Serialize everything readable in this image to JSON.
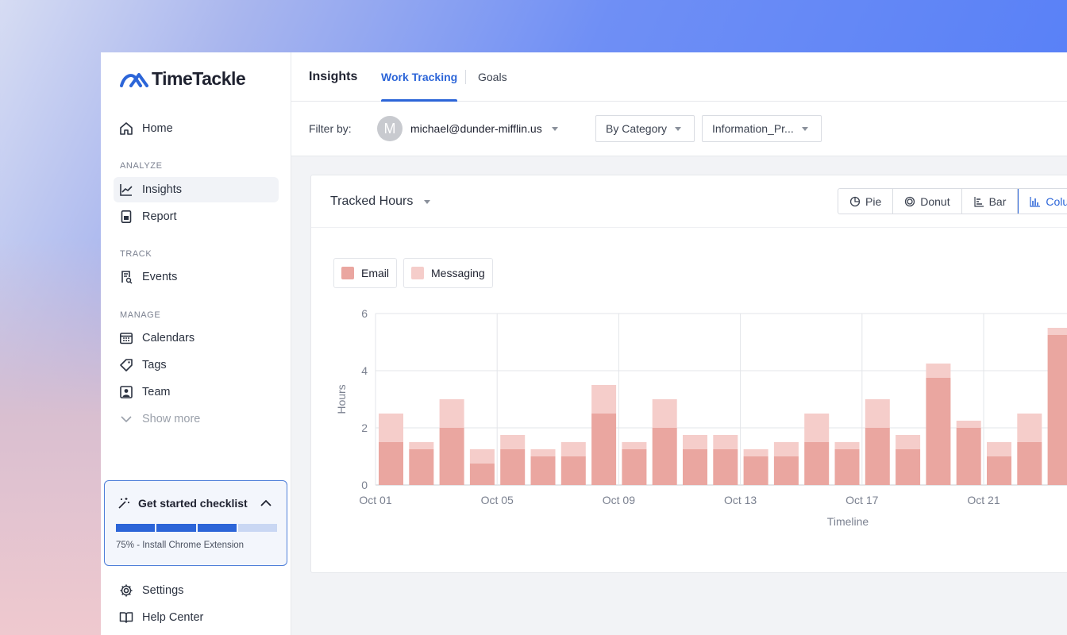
{
  "app": {
    "name": "TimeTackle"
  },
  "sidebar": {
    "home": "Home",
    "sections": {
      "analyze": "ANALYZE",
      "track": "TRACK",
      "manage": "MANAGE"
    },
    "items": {
      "insights": "Insights",
      "report": "Report",
      "events": "Events",
      "calendars": "Calendars",
      "tags": "Tags",
      "team": "Team",
      "show_more": "Show more",
      "settings": "Settings",
      "help_center": "Help Center"
    },
    "checklist": {
      "title": "Get started checklist",
      "progress_fraction": 0.75,
      "status": "75% - Install Chrome Extension"
    }
  },
  "header": {
    "title": "Insights",
    "tabs": [
      {
        "label": "Work Tracking",
        "active": true
      },
      {
        "label": "Goals",
        "active": false
      }
    ]
  },
  "filters": {
    "label": "Filter by:",
    "avatar_initial": "M",
    "user": "michael@dunder-mifflin.us",
    "group_by": "By Category",
    "category": "Information_Pr..."
  },
  "card": {
    "metric": "Tracked Hours",
    "chart_types": [
      {
        "label": "Pie",
        "icon": "pie-icon"
      },
      {
        "label": "Donut",
        "icon": "donut-icon"
      },
      {
        "label": "Bar",
        "icon": "bar-icon"
      },
      {
        "label": "Colu",
        "icon": "column-icon",
        "active": true
      }
    ]
  },
  "colors": {
    "email": "#eaa6a0",
    "messaging": "#f5cdca",
    "accent": "#2c65d8"
  },
  "chart_data": {
    "type": "bar",
    "stacked": true,
    "xlabel": "Timeline",
    "ylabel": "Hours",
    "ylim": [
      0,
      6
    ],
    "yticks": [
      0,
      2,
      4,
      6
    ],
    "tick_labels": [
      "Oct 01",
      "Oct 05",
      "Oct 09",
      "Oct 13",
      "Oct 17",
      "Oct 21"
    ],
    "categories": [
      "Oct 01",
      "Oct 02",
      "Oct 03",
      "Oct 04",
      "Oct 05",
      "Oct 06",
      "Oct 07",
      "Oct 08",
      "Oct 09",
      "Oct 10",
      "Oct 11",
      "Oct 12",
      "Oct 13",
      "Oct 14",
      "Oct 15",
      "Oct 16",
      "Oct 17",
      "Oct 18",
      "Oct 19",
      "Oct 20",
      "Oct 21",
      "Oct 22",
      "Oct 23"
    ],
    "series": [
      {
        "name": "Email",
        "color": "#eaa6a0",
        "values": [
          1.5,
          1.25,
          2,
          0.75,
          1.25,
          1,
          1,
          2.5,
          1.25,
          2,
          1.25,
          1.25,
          1,
          1,
          1.5,
          1.25,
          2,
          1.25,
          3.75,
          2,
          1,
          1.5,
          5.25
        ]
      },
      {
        "name": "Messaging",
        "color": "#f5cdca",
        "values": [
          1,
          0.25,
          1,
          0.5,
          0.5,
          0.25,
          0.5,
          1,
          0.25,
          1,
          0.5,
          0.5,
          0.25,
          0.5,
          1,
          0.25,
          1,
          0.5,
          0.5,
          0.25,
          0.5,
          1,
          0.25
        ]
      }
    ],
    "grid": true,
    "legend": "top-left"
  }
}
